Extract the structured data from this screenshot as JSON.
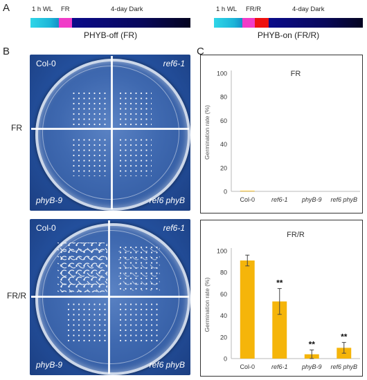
{
  "panels": {
    "a": "A",
    "b": "B",
    "c": "C"
  },
  "timeline_left": {
    "wl": "1 h WL",
    "fr": "FR",
    "dark": "4-day Dark",
    "caption": "PHYB-off (FR)"
  },
  "timeline_right": {
    "wl": "1 h WL",
    "frr": "FR/R",
    "dark": "4-day Dark",
    "caption": "PHYB-on (FR/R)"
  },
  "colors": {
    "wl": "#22c4e0",
    "fr": "#f03cc8",
    "red": "#ee1111",
    "dark": "#08085a",
    "bar": "#f5b50a",
    "plate_bg": "#24519f"
  },
  "row_labels": {
    "top": "FR",
    "bottom": "FR/R"
  },
  "plate_top": {
    "tl": "Col-0",
    "tr": "ref6-1",
    "bl": "phyB-9",
    "br": "ref6 phyB"
  },
  "plate_bottom": {
    "tl": "Col-0",
    "tr": "ref6-1",
    "bl": "phyB-9",
    "br": "ref6 phyB"
  },
  "chart_data": [
    {
      "type": "bar",
      "title": "FR",
      "ylabel": "Germination rate (%)",
      "categories": [
        "Col-0",
        "ref6-1",
        "phyB-9",
        "ref6 phyB"
      ],
      "italic_categories": [
        false,
        true,
        true,
        true
      ],
      "values": [
        0.5,
        0,
        0,
        0
      ],
      "errors": [
        0,
        0,
        0,
        0
      ],
      "significance": [
        "",
        "",
        "",
        ""
      ],
      "ylim": [
        0,
        100
      ],
      "yticks": [
        0,
        20,
        40,
        60,
        80,
        100
      ]
    },
    {
      "type": "bar",
      "title": "FR/R",
      "ylabel": "Germination rate (%)",
      "categories": [
        "Col-0",
        "ref6-1",
        "phyB-9",
        "ref6 phyB"
      ],
      "italic_categories": [
        false,
        true,
        true,
        true
      ],
      "values": [
        91,
        53,
        4,
        10
      ],
      "errors": [
        5,
        12,
        4,
        5
      ],
      "significance": [
        "",
        "**",
        "**",
        "**"
      ],
      "ylim": [
        0,
        100
      ],
      "yticks": [
        0,
        20,
        40,
        60,
        80,
        100
      ]
    }
  ]
}
